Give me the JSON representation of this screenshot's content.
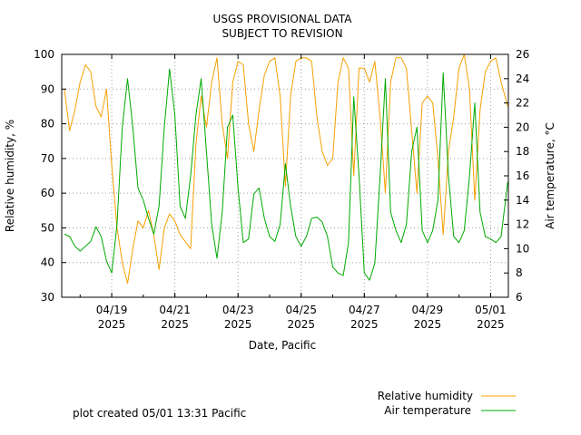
{
  "title_line1": "USGS PROVISIONAL DATA",
  "title_line2": "SUBJECT TO REVISION",
  "footer": "plot created 05/01 13:31 Pacific",
  "chart_data": {
    "type": "line",
    "title": "USGS PROVISIONAL DATA SUBJECT TO REVISION",
    "xlabel": "Date, Pacific",
    "ylabel_left": "Relative humidity, %",
    "ylabel_right": "Air temperature, °C",
    "x_range": [
      "2025-04-17T10:00",
      "2025-05-01T13:31"
    ],
    "ylim_left": [
      30,
      100
    ],
    "ylim_right": [
      6,
      26
    ],
    "y_ticks_left": [
      30,
      40,
      50,
      60,
      70,
      80,
      90,
      100
    ],
    "y_ticks_right": [
      6,
      8,
      10,
      12,
      14,
      16,
      18,
      20,
      22,
      24,
      26
    ],
    "x_ticks": [
      {
        "date": "2025-04-19",
        "label1": "04/19",
        "label2": "2025"
      },
      {
        "date": "2025-04-21",
        "label1": "04/21",
        "label2": "2025"
      },
      {
        "date": "2025-04-23",
        "label1": "04/23",
        "label2": "2025"
      },
      {
        "date": "2025-04-25",
        "label1": "04/25",
        "label2": "2025"
      },
      {
        "date": "2025-04-27",
        "label1": "04/27",
        "label2": "2025"
      },
      {
        "date": "2025-04-29",
        "label1": "04/29",
        "label2": "2025"
      },
      {
        "date": "2025-05-01",
        "label1": "05/01",
        "label2": "2025"
      }
    ],
    "grid": true,
    "legend_position": "bottom-right",
    "series": [
      {
        "name": "Relative humidity",
        "axis": "left",
        "color": "#f5a000",
        "points": [
          [
            "2025-04-17T12:00",
            90
          ],
          [
            "2025-04-17T16:00",
            78
          ],
          [
            "2025-04-17T20:00",
            84
          ],
          [
            "2025-04-18T00:00",
            92
          ],
          [
            "2025-04-18T04:00",
            97
          ],
          [
            "2025-04-18T08:00",
            95
          ],
          [
            "2025-04-18T12:00",
            85
          ],
          [
            "2025-04-18T16:00",
            82
          ],
          [
            "2025-04-18T20:00",
            90
          ],
          [
            "2025-04-19T00:00",
            68
          ],
          [
            "2025-04-19T04:00",
            50
          ],
          [
            "2025-04-19T08:00",
            40
          ],
          [
            "2025-04-19T12:00",
            34
          ],
          [
            "2025-04-19T16:00",
            44
          ],
          [
            "2025-04-19T20:00",
            52
          ],
          [
            "2025-04-20T00:00",
            50
          ],
          [
            "2025-04-20T04:00",
            55
          ],
          [
            "2025-04-20T08:00",
            48
          ],
          [
            "2025-04-20T12:00",
            38
          ],
          [
            "2025-04-20T16:00",
            50
          ],
          [
            "2025-04-20T20:00",
            54
          ],
          [
            "2025-04-21T00:00",
            52
          ],
          [
            "2025-04-21T04:00",
            48
          ],
          [
            "2025-04-21T08:00",
            46
          ],
          [
            "2025-04-21T12:00",
            44
          ],
          [
            "2025-04-21T16:00",
            74
          ],
          [
            "2025-04-21T20:00",
            88
          ],
          [
            "2025-04-22T00:00",
            79
          ],
          [
            "2025-04-22T04:00",
            92
          ],
          [
            "2025-04-22T08:00",
            99
          ],
          [
            "2025-04-22T12:00",
            80
          ],
          [
            "2025-04-22T16:00",
            70
          ],
          [
            "2025-04-22T20:00",
            92
          ],
          [
            "2025-04-23T00:00",
            98
          ],
          [
            "2025-04-23T04:00",
            97
          ],
          [
            "2025-04-23T08:00",
            80
          ],
          [
            "2025-04-23T12:00",
            72
          ],
          [
            "2025-04-23T16:00",
            84
          ],
          [
            "2025-04-23T20:00",
            94
          ],
          [
            "2025-04-24T00:00",
            98
          ],
          [
            "2025-04-24T04:00",
            99
          ],
          [
            "2025-04-24T08:00",
            88
          ],
          [
            "2025-04-24T12:00",
            62
          ],
          [
            "2025-04-24T16:00",
            88
          ],
          [
            "2025-04-24T20:00",
            98
          ],
          [
            "2025-04-25T00:00",
            99
          ],
          [
            "2025-04-25T04:00",
            99
          ],
          [
            "2025-04-25T08:00",
            98
          ],
          [
            "2025-04-25T12:00",
            82
          ],
          [
            "2025-04-25T16:00",
            72
          ],
          [
            "2025-04-25T20:00",
            68
          ],
          [
            "2025-04-26T00:00",
            70
          ],
          [
            "2025-04-26T04:00",
            92
          ],
          [
            "2025-04-26T08:00",
            99
          ],
          [
            "2025-04-26T12:00",
            96
          ],
          [
            "2025-04-26T16:00",
            65
          ],
          [
            "2025-04-26T20:00",
            96
          ],
          [
            "2025-04-27T00:00",
            96
          ],
          [
            "2025-04-27T04:00",
            92
          ],
          [
            "2025-04-27T08:00",
            98
          ],
          [
            "2025-04-27T12:00",
            82
          ],
          [
            "2025-04-27T16:00",
            60
          ],
          [
            "2025-04-27T20:00",
            92
          ],
          [
            "2025-04-28T00:00",
            99
          ],
          [
            "2025-04-28T04:00",
            99
          ],
          [
            "2025-04-28T08:00",
            96
          ],
          [
            "2025-04-28T12:00",
            78
          ],
          [
            "2025-04-28T16:00",
            60
          ],
          [
            "2025-04-28T20:00",
            86
          ],
          [
            "2025-04-29T00:00",
            88
          ],
          [
            "2025-04-29T04:00",
            86
          ],
          [
            "2025-04-29T08:00",
            70
          ],
          [
            "2025-04-29T12:00",
            48
          ],
          [
            "2025-04-29T16:00",
            72
          ],
          [
            "2025-04-29T20:00",
            82
          ],
          [
            "2025-04-30T00:00",
            96
          ],
          [
            "2025-04-30T04:00",
            100
          ],
          [
            "2025-04-30T08:00",
            90
          ],
          [
            "2025-04-30T12:00",
            58
          ],
          [
            "2025-04-30T16:00",
            84
          ],
          [
            "2025-04-30T20:00",
            95
          ],
          [
            "2025-05-01T00:00",
            98
          ],
          [
            "2025-05-01T04:00",
            99
          ],
          [
            "2025-05-01T08:00",
            92
          ],
          [
            "2025-05-01T13:00",
            85
          ]
        ]
      },
      {
        "name": "Air temperature",
        "axis": "right",
        "color": "#00aa00",
        "points": [
          [
            "2025-04-17T12:00",
            11.2
          ],
          [
            "2025-04-17T16:00",
            11.0
          ],
          [
            "2025-04-17T20:00",
            10.2
          ],
          [
            "2025-04-18T00:00",
            9.8
          ],
          [
            "2025-04-18T04:00",
            10.2
          ],
          [
            "2025-04-18T08:00",
            10.6
          ],
          [
            "2025-04-18T12:00",
            11.8
          ],
          [
            "2025-04-18T16:00",
            11.0
          ],
          [
            "2025-04-18T20:00",
            9.0
          ],
          [
            "2025-04-19T00:00",
            8.0
          ],
          [
            "2025-04-19T04:00",
            12.0
          ],
          [
            "2025-04-19T08:00",
            20.0
          ],
          [
            "2025-04-19T12:00",
            24.0
          ],
          [
            "2025-04-19T16:00",
            20.0
          ],
          [
            "2025-04-19T20:00",
            15.0
          ],
          [
            "2025-04-20T00:00",
            14.0
          ],
          [
            "2025-04-20T04:00",
            12.5
          ],
          [
            "2025-04-20T08:00",
            11.2
          ],
          [
            "2025-04-20T12:00",
            13.5
          ],
          [
            "2025-04-20T16:00",
            20.0
          ],
          [
            "2025-04-20T20:00",
            24.8
          ],
          [
            "2025-04-21T00:00",
            21.0
          ],
          [
            "2025-04-21T04:00",
            13.5
          ],
          [
            "2025-04-21T08:00",
            12.5
          ],
          [
            "2025-04-21T12:00",
            16.0
          ],
          [
            "2025-04-21T16:00",
            21.0
          ],
          [
            "2025-04-21T20:00",
            24.0
          ],
          [
            "2025-04-22T00:00",
            18.0
          ],
          [
            "2025-04-22T04:00",
            12.0
          ],
          [
            "2025-04-22T08:00",
            9.2
          ],
          [
            "2025-04-22T12:00",
            13.0
          ],
          [
            "2025-04-22T16:00",
            20.0
          ],
          [
            "2025-04-22T20:00",
            21.0
          ],
          [
            "2025-04-23T00:00",
            15.0
          ],
          [
            "2025-04-23T04:00",
            10.5
          ],
          [
            "2025-04-23T08:00",
            10.8
          ],
          [
            "2025-04-23T12:00",
            14.5
          ],
          [
            "2025-04-23T16:00",
            15.0
          ],
          [
            "2025-04-23T20:00",
            12.5
          ],
          [
            "2025-04-24T00:00",
            11.0
          ],
          [
            "2025-04-24T04:00",
            10.6
          ],
          [
            "2025-04-24T08:00",
            12.0
          ],
          [
            "2025-04-24T12:00",
            17.0
          ],
          [
            "2025-04-24T16:00",
            13.5
          ],
          [
            "2025-04-24T20:00",
            11.0
          ],
          [
            "2025-04-25T00:00",
            10.2
          ],
          [
            "2025-04-25T04:00",
            11.0
          ],
          [
            "2025-04-25T08:00",
            12.5
          ],
          [
            "2025-04-25T12:00",
            12.6
          ],
          [
            "2025-04-25T16:00",
            12.2
          ],
          [
            "2025-04-25T20:00",
            11.0
          ],
          [
            "2025-04-26T00:00",
            8.5
          ],
          [
            "2025-04-26T04:00",
            8.0
          ],
          [
            "2025-04-26T08:00",
            7.8
          ],
          [
            "2025-04-26T12:00",
            10.5
          ],
          [
            "2025-04-26T16:00",
            22.5
          ],
          [
            "2025-04-26T20:00",
            16.0
          ],
          [
            "2025-04-27T00:00",
            8.0
          ],
          [
            "2025-04-27T04:00",
            7.4
          ],
          [
            "2025-04-27T08:00",
            8.8
          ],
          [
            "2025-04-27T12:00",
            16.0
          ],
          [
            "2025-04-27T16:00",
            24.0
          ],
          [
            "2025-04-27T20:00",
            13.0
          ],
          [
            "2025-04-28T00:00",
            11.5
          ],
          [
            "2025-04-28T04:00",
            10.5
          ],
          [
            "2025-04-28T08:00",
            12.0
          ],
          [
            "2025-04-28T12:00",
            18.0
          ],
          [
            "2025-04-28T16:00",
            20.0
          ],
          [
            "2025-04-28T20:00",
            11.5
          ],
          [
            "2025-04-29T00:00",
            10.5
          ],
          [
            "2025-04-29T04:00",
            11.5
          ],
          [
            "2025-04-29T08:00",
            14.0
          ],
          [
            "2025-04-29T12:00",
            24.5
          ],
          [
            "2025-04-29T16:00",
            16.0
          ],
          [
            "2025-04-29T20:00",
            11.0
          ],
          [
            "2025-04-30T00:00",
            10.5
          ],
          [
            "2025-04-30T04:00",
            11.5
          ],
          [
            "2025-04-30T08:00",
            16.0
          ],
          [
            "2025-04-30T12:00",
            22.0
          ],
          [
            "2025-04-30T16:00",
            13.0
          ],
          [
            "2025-04-30T20:00",
            11.0
          ],
          [
            "2025-05-01T00:00",
            10.8
          ],
          [
            "2025-05-01T04:00",
            10.5
          ],
          [
            "2025-05-01T08:00",
            11.0
          ],
          [
            "2025-05-01T13:00",
            15.5
          ]
        ]
      }
    ]
  }
}
